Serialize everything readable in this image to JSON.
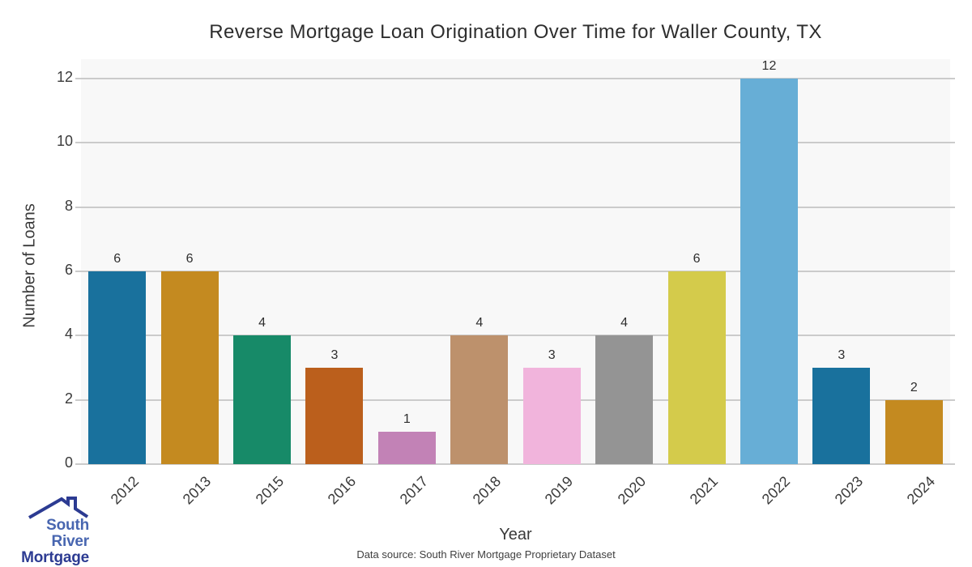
{
  "chart_data": {
    "type": "bar",
    "title": "Reverse Mortgage Loan Origination Over Time for Waller County, TX",
    "xlabel": "Year",
    "ylabel": "Number of Loans",
    "categories": [
      "2012",
      "2013",
      "2015",
      "2016",
      "2017",
      "2018",
      "2019",
      "2020",
      "2021",
      "2022",
      "2023",
      "2024"
    ],
    "values": [
      6,
      6,
      4,
      3,
      1,
      4,
      3,
      4,
      6,
      12,
      3,
      2
    ],
    "bar_colors": [
      "#19719d",
      "#c48a20",
      "#178a68",
      "#bb5f1c",
      "#c282b6",
      "#bd916c",
      "#f1b4dc",
      "#949494",
      "#d4cb4b",
      "#67aed6",
      "#19719d",
      "#c48a20"
    ],
    "yticks": [
      0,
      2,
      4,
      6,
      8,
      10,
      12
    ],
    "ylim": [
      0,
      12.6
    ],
    "grid": true,
    "legend": null,
    "plot_bg_color": "#f8f8f8",
    "grid_color": "#cbcbcb"
  },
  "footer": {
    "source": "Data source: South River Mortgage Proprietary Dataset"
  },
  "logo": {
    "line1": "South River",
    "line2": "Mortgage",
    "line1_color": "#4866b0",
    "line2_color": "#2c3b92",
    "roof_color": "#2c3b92"
  }
}
